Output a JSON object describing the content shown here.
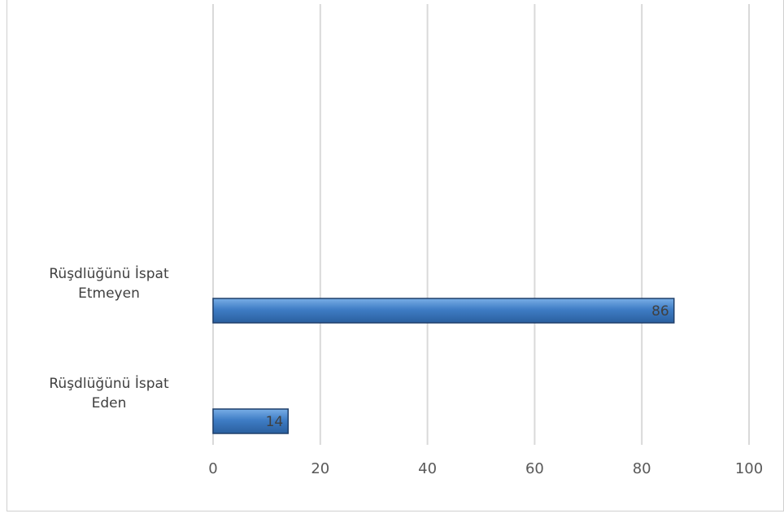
{
  "chart_data": {
    "type": "bar",
    "orientation": "horizontal",
    "categories": [
      [
        "Rüşdlüğünü İspat",
        "Eden"
      ],
      [
        "Rüşdlüğünü İspat",
        "Etmeyen"
      ]
    ],
    "values": [
      14,
      86
    ],
    "data_labels": [
      "14",
      "86"
    ],
    "xlim": [
      0,
      100
    ],
    "ticks": [
      "0",
      "20",
      "40",
      "60",
      "80",
      "100"
    ],
    "grid": true,
    "legend": "none",
    "colors": {
      "bar_fill": "#3f7dc5",
      "bar_stroke": "#1f3f6a",
      "grid": "#d9d9d9"
    }
  }
}
